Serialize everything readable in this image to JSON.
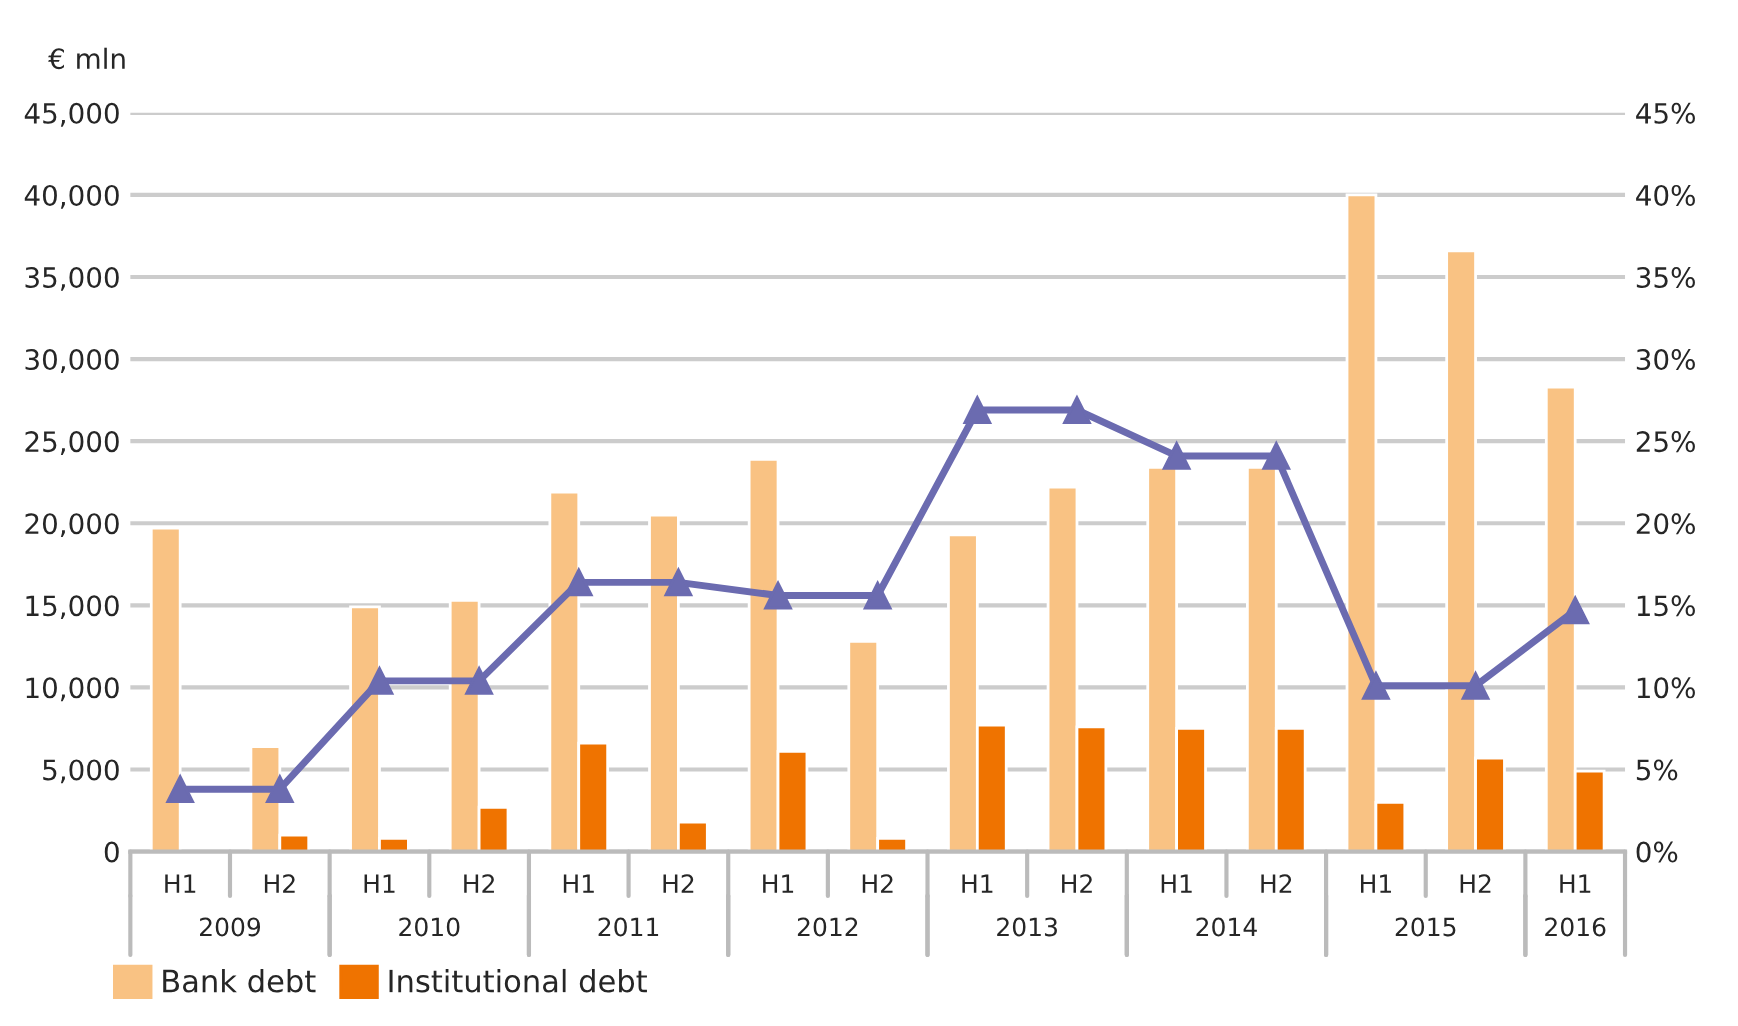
{
  "chart_data": {
    "type": "bar",
    "ylabel": "€ mln",
    "categories": [
      "H1",
      "H2",
      "H1",
      "H2",
      "H1",
      "H2",
      "H1",
      "H2",
      "H1",
      "H2",
      "H1",
      "H2",
      "H1",
      "H2",
      "H1"
    ],
    "annotations": [
      "2009",
      "2010",
      "2011",
      "2012",
      "2013",
      "2014",
      "2015",
      "2016"
    ],
    "series": [
      {
        "name": "Bank debt",
        "color": "#f9c283",
        "values": [
          19700,
          6400,
          14900,
          15300,
          21900,
          20500,
          23900,
          12800,
          19300,
          22200,
          23400,
          23400,
          40000,
          36600,
          28300
        ]
      },
      {
        "name": "Institutional debt",
        "color": "#ef7300",
        "values": [
          null,
          1000,
          800,
          2700,
          6600,
          1800,
          6100,
          800,
          7700,
          7600,
          7500,
          7500,
          3000,
          5700,
          4900
        ]
      },
      {
        "type": "line",
        "axis": "y2",
        "color": "#6b6bb0",
        "marker": "triangle",
        "line_style": "solid",
        "values": [
          3.8,
          3.8,
          10.4,
          10.4,
          16.4,
          16.4,
          15.6,
          15.6,
          26.9,
          26.9,
          24.1,
          24.1,
          10.1,
          10.1,
          14.7
        ]
      }
    ],
    "ylim": [
      0,
      45000
    ],
    "yticks": [
      {
        "value": 0,
        "label": "0"
      },
      {
        "value": 5000,
        "label": "5,000"
      },
      {
        "value": 10000,
        "label": "10,000"
      },
      {
        "value": 15000,
        "label": "15,000"
      },
      {
        "value": 20000,
        "label": "20,000"
      },
      {
        "value": 25000,
        "label": "25,000"
      },
      {
        "value": 30000,
        "label": "30,000"
      },
      {
        "value": 35000,
        "label": "35,000"
      },
      {
        "value": 40000,
        "label": "40,000"
      },
      {
        "value": 45000,
        "label": "45,000"
      }
    ],
    "y2lim": [
      0,
      45
    ],
    "y2ticks": [
      {
        "value": 0,
        "label": "0%"
      },
      {
        "value": 5,
        "label": "5%"
      },
      {
        "value": 10,
        "label": "10%"
      },
      {
        "value": 15,
        "label": "15%"
      },
      {
        "value": 20,
        "label": "20%"
      },
      {
        "value": 25,
        "label": "25%"
      },
      {
        "value": 30,
        "label": "30%"
      },
      {
        "value": 35,
        "label": "35%"
      },
      {
        "value": 40,
        "label": "40%"
      },
      {
        "value": 45,
        "label": "45%"
      }
    ],
    "grid": "y",
    "legend": "bottom left"
  }
}
